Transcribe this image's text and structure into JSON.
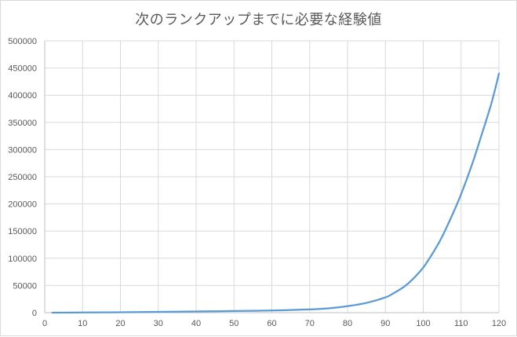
{
  "chart_data": {
    "type": "line",
    "title": "次のランクアップまでに必要な経験値",
    "xlabel": "",
    "ylabel": "",
    "xlim": [
      0,
      120
    ],
    "ylim": [
      0,
      500000
    ],
    "x_ticks": [
      0,
      10,
      20,
      30,
      40,
      50,
      60,
      70,
      80,
      90,
      100,
      110,
      120
    ],
    "y_ticks": [
      0,
      50000,
      100000,
      150000,
      200000,
      250000,
      300000,
      350000,
      400000,
      450000,
      500000
    ],
    "grid": true,
    "legend": "none",
    "colors": {
      "line": "#5b9bd5",
      "grid": "#d9d9d9",
      "axis": "#bfbfbf",
      "text": "#595959"
    },
    "series": [
      {
        "x": [
          2,
          10,
          20,
          30,
          40,
          50,
          60,
          70,
          75,
          80,
          85,
          90,
          92,
          95,
          97,
          100,
          103,
          105,
          108,
          110,
          113,
          115,
          118,
          120
        ],
        "values": [
          0,
          300,
          800,
          1500,
          2200,
          3000,
          4000,
          6000,
          8000,
          12000,
          18000,
          28000,
          35000,
          48000,
          60000,
          83000,
          115000,
          140000,
          185000,
          218000,
          275000,
          318000,
          385000,
          440000
        ]
      }
    ]
  }
}
